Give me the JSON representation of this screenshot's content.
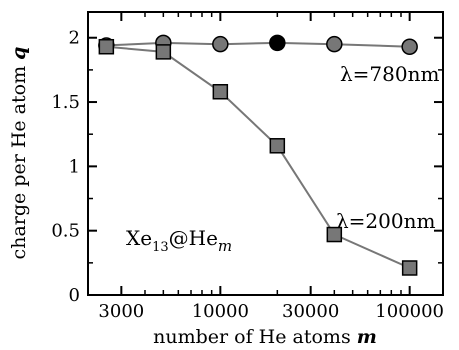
{
  "chart_data": {
    "type": "line",
    "x_scale": "log",
    "xlim": [
      2000,
      150000
    ],
    "ylim": [
      0,
      2.2
    ],
    "xticks": [
      3000,
      10000,
      30000,
      100000
    ],
    "xtick_labels": [
      "3000",
      "10000",
      "30000",
      "100000"
    ],
    "yticks": [
      0,
      0.5,
      1,
      1.5,
      2
    ],
    "ytick_labels": [
      "0",
      "0.5",
      "1",
      "1.5",
      "2"
    ],
    "xlabel": {
      "text": "number of He atoms ",
      "var": "m"
    },
    "ylabel": {
      "text": "charge per He atom ",
      "var": "q"
    },
    "grid": false,
    "series": [
      {
        "name": "λ=780nm",
        "marker": "circle",
        "color": "#777777",
        "x": [
          2500,
          5000,
          10000,
          20000,
          40000,
          100000
        ],
        "y": [
          1.94,
          1.96,
          1.95,
          1.96,
          1.95,
          1.93
        ],
        "highlight_index": 3,
        "highlight_color": "#000000"
      },
      {
        "name": "λ=200nm",
        "marker": "square",
        "color": "#777777",
        "x": [
          2500,
          5000,
          10000,
          20000,
          40000,
          100000
        ],
        "y": [
          1.93,
          1.89,
          1.58,
          1.16,
          0.47,
          0.21
        ]
      }
    ],
    "annotations": {
      "system": {
        "main": "Xe",
        "sub1": "13",
        "mid": "@He",
        "sub2": "m"
      }
    }
  }
}
